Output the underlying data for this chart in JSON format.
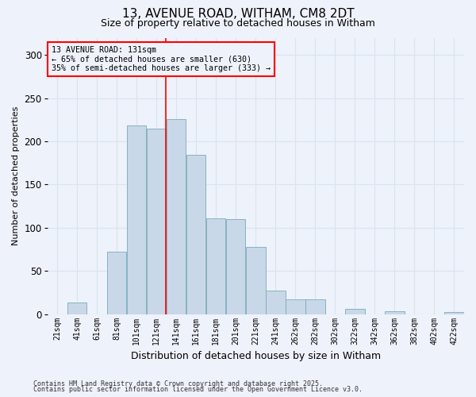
{
  "title1": "13, AVENUE ROAD, WITHAM, CM8 2DT",
  "title2": "Size of property relative to detached houses in Witham",
  "xlabel": "Distribution of detached houses by size in Witham",
  "ylabel": "Number of detached properties",
  "categories": [
    "21sqm",
    "41sqm",
    "61sqm",
    "81sqm",
    "101sqm",
    "121sqm",
    "141sqm",
    "161sqm",
    "181sqm",
    "201sqm",
    "221sqm",
    "241sqm",
    "262sqm",
    "282sqm",
    "302sqm",
    "322sqm",
    "342sqm",
    "362sqm",
    "382sqm",
    "402sqm",
    "422sqm"
  ],
  "values": [
    0,
    13,
    0,
    72,
    218,
    215,
    226,
    184,
    111,
    110,
    78,
    27,
    17,
    17,
    0,
    6,
    0,
    3,
    0,
    0,
    2
  ],
  "bar_color": "#c8d8e8",
  "bar_edge_color": "#7aaabb",
  "grid_color": "#d8e4f0",
  "annotation_line_color": "red",
  "annotation_box_text": "13 AVENUE ROAD: 131sqm\n← 65% of detached houses are smaller (630)\n35% of semi-detached houses are larger (333) →",
  "ylim": [
    0,
    320
  ],
  "yticks": [
    0,
    50,
    100,
    150,
    200,
    250,
    300
  ],
  "footer1": "Contains HM Land Registry data © Crown copyright and database right 2025.",
  "footer2": "Contains public sector information licensed under the Open Government Licence v3.0.",
  "bg_color": "#eef2fa"
}
